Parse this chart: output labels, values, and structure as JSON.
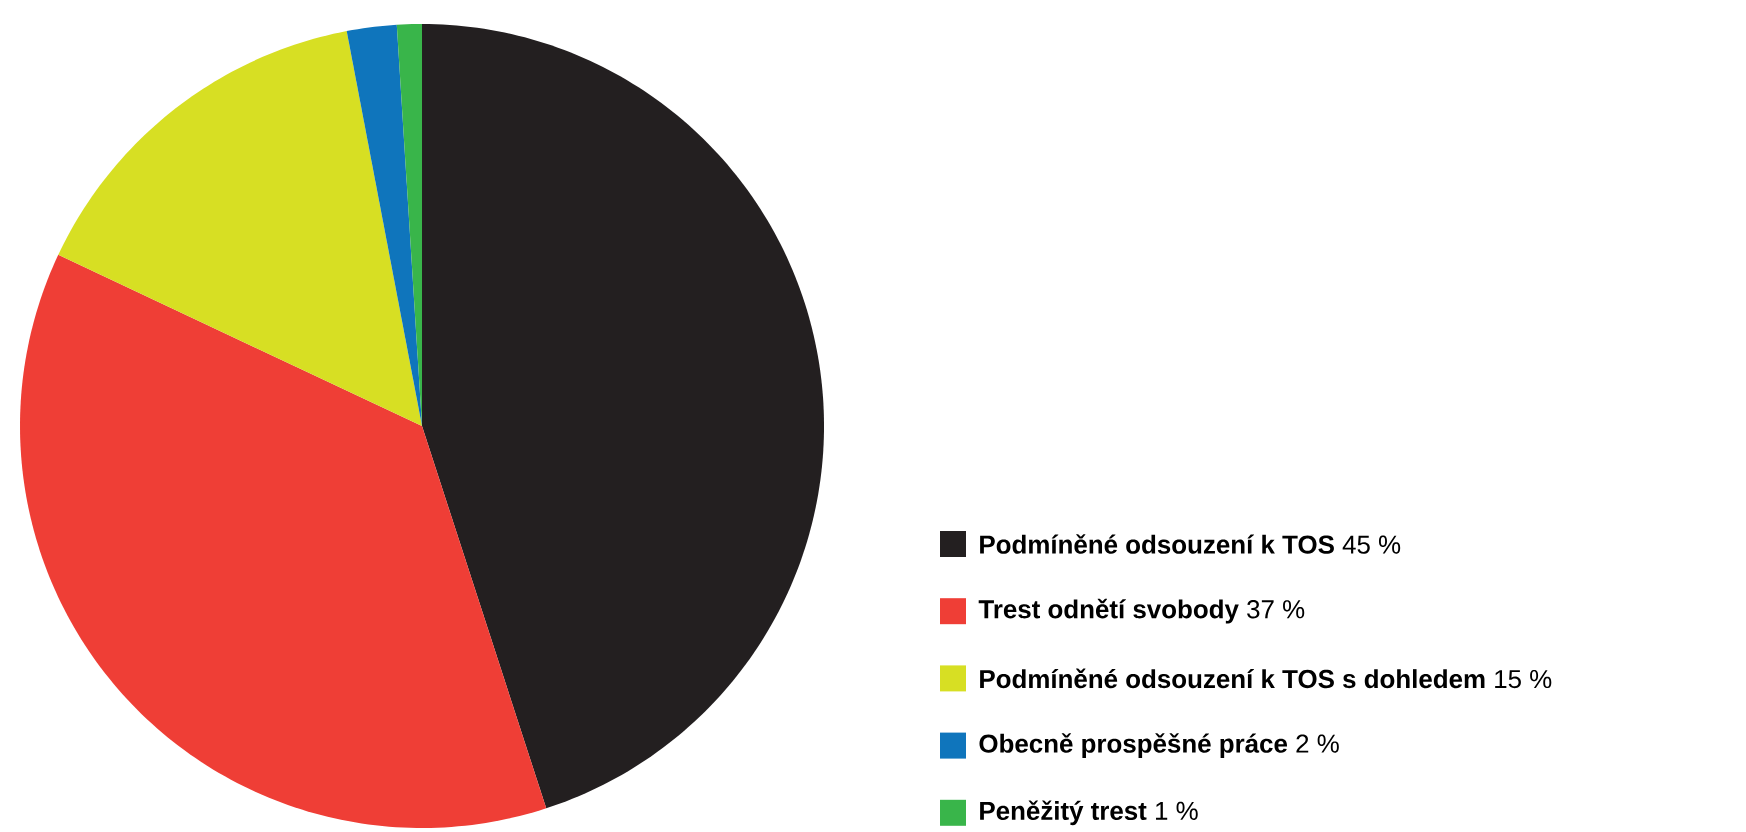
{
  "chart_data": {
    "type": "pie",
    "categories": [
      "Podmíněné odsouzení k TOS",
      "Trest odnětí svobody",
      "Podmíněné odsouzení k TOS s dohledem",
      "Obecně prospěšné práce",
      "Peněžitý trest"
    ],
    "values": [
      45,
      37,
      15,
      2,
      1
    ],
    "value_labels": [
      "45 %",
      "37 %",
      "15 %",
      "2 %",
      "1 %"
    ],
    "colors": [
      "#231f20",
      "#ef3e36",
      "#d7df23",
      "#0f75bc",
      "#39b54a"
    ],
    "legend": "bottom right"
  }
}
